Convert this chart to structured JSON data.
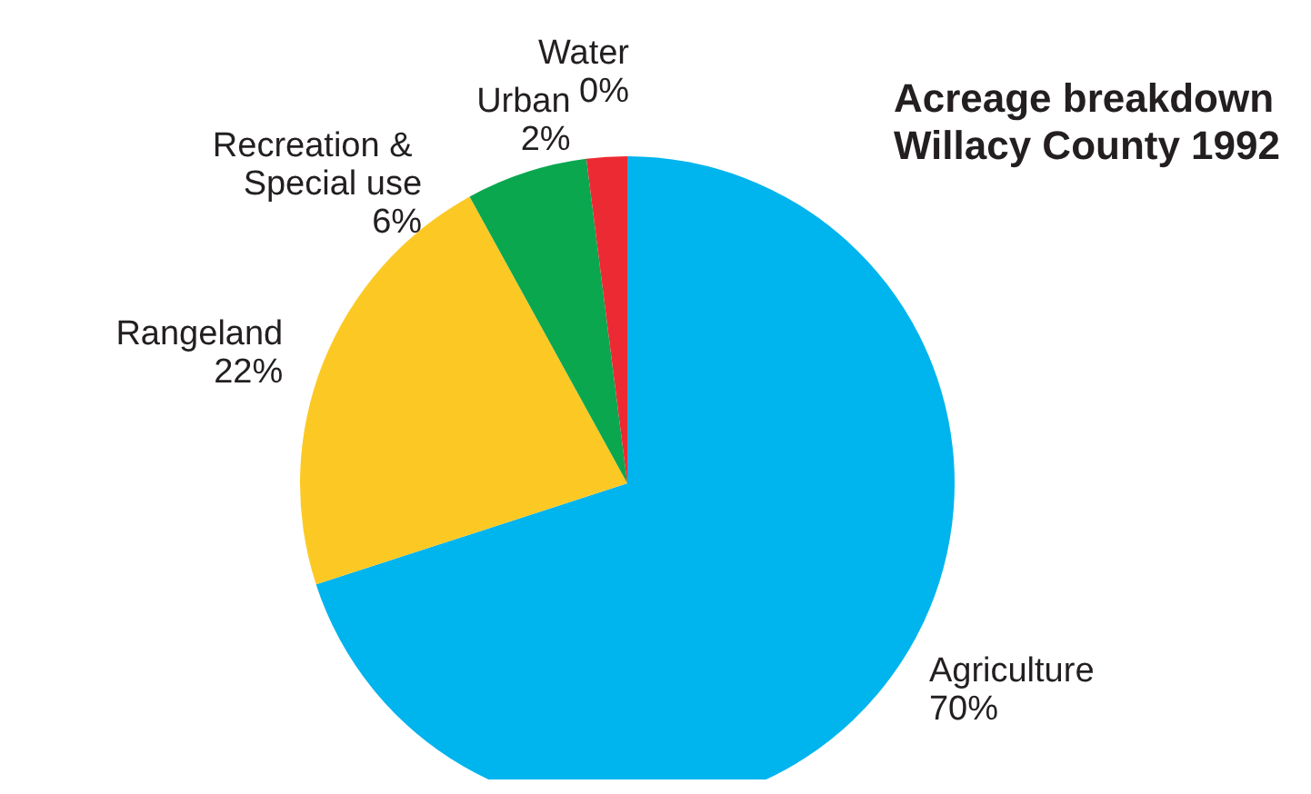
{
  "chart_data": {
    "type": "pie",
    "title": "Acreage breakdown\nWillacy County 1992",
    "categories": [
      "Agriculture",
      "Rangeland",
      "Recreation & Special use",
      "Urban",
      "Water"
    ],
    "values": [
      70,
      22,
      6,
      2,
      0
    ],
    "value_labels": [
      "70%",
      "22%",
      "6%",
      "2%",
      "0%"
    ],
    "colors": [
      "#00b4ee",
      "#fcc924",
      "#0aa74f",
      "#ec2a33",
      "#3b8fd8"
    ],
    "legend": false
  }
}
